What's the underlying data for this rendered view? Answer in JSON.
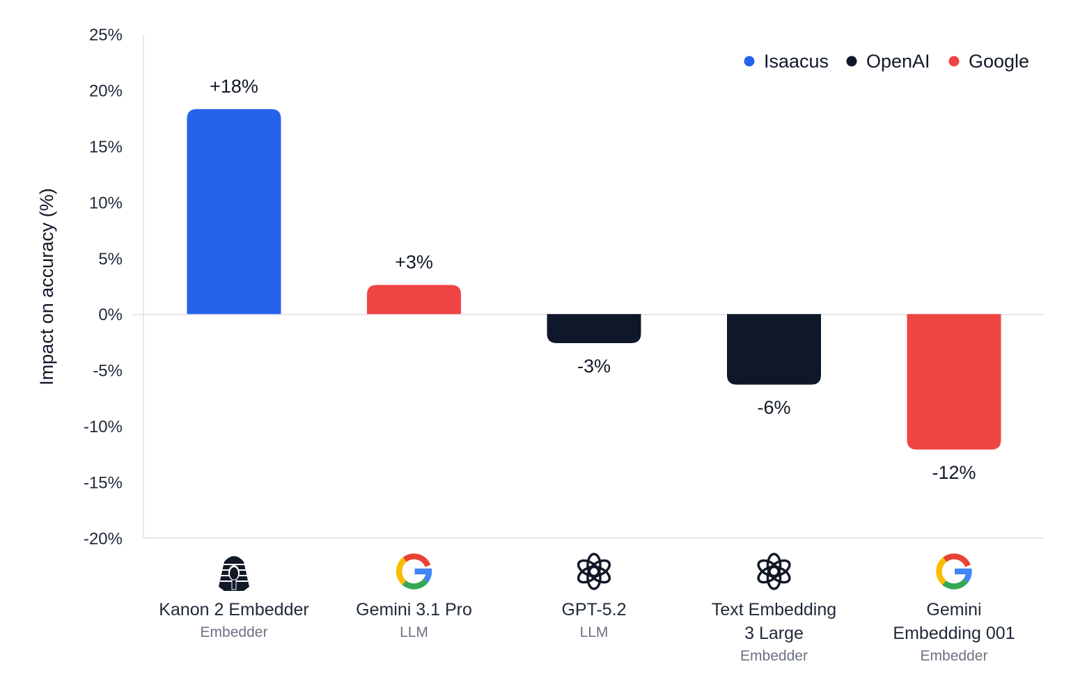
{
  "chart_data": {
    "type": "bar",
    "ylabel": "Impact on accuracy (%)",
    "ylim": [
      -20,
      25
    ],
    "yticks": [
      25,
      20,
      15,
      10,
      5,
      0,
      -5,
      -10,
      -15,
      -20
    ],
    "tick_suffix": "%",
    "grid": false,
    "legend": {
      "placement": "top-right",
      "entries": [
        {
          "name": "Isaacus",
          "color": "#2563eb"
        },
        {
          "name": "OpenAI",
          "color": "#0f172a"
        },
        {
          "name": "Google",
          "color": "#ef4444"
        }
      ]
    },
    "bars": [
      {
        "name": [
          "Kanon 2 Embedder"
        ],
        "kind": "Embedder",
        "value": 18.3,
        "label": "+18%",
        "vendor": "Isaacus",
        "color": "#2563eb",
        "icon": "pharaoh-icon"
      },
      {
        "name": [
          "Gemini 3.1 Pro"
        ],
        "kind": "LLM",
        "value": 2.6,
        "label": "+3%",
        "vendor": "Google",
        "color": "#ef4444",
        "icon": "google-g-icon"
      },
      {
        "name": [
          "GPT-5.2"
        ],
        "kind": "LLM",
        "value": -2.6,
        "label": "-3%",
        "vendor": "OpenAI",
        "color": "#0f172a",
        "icon": "openai-logo-icon"
      },
      {
        "name": [
          "Text Embedding",
          "3 Large"
        ],
        "kind": "Embedder",
        "value": -6.3,
        "label": "-6%",
        "vendor": "OpenAI",
        "color": "#0f172a",
        "icon": "openai-logo-icon"
      },
      {
        "name": [
          "Gemini",
          "Embedding 001"
        ],
        "kind": "Embedder",
        "value": -12.1,
        "label": "-12%",
        "vendor": "Google",
        "color": "#ef4444",
        "icon": "google-g-icon"
      }
    ]
  }
}
